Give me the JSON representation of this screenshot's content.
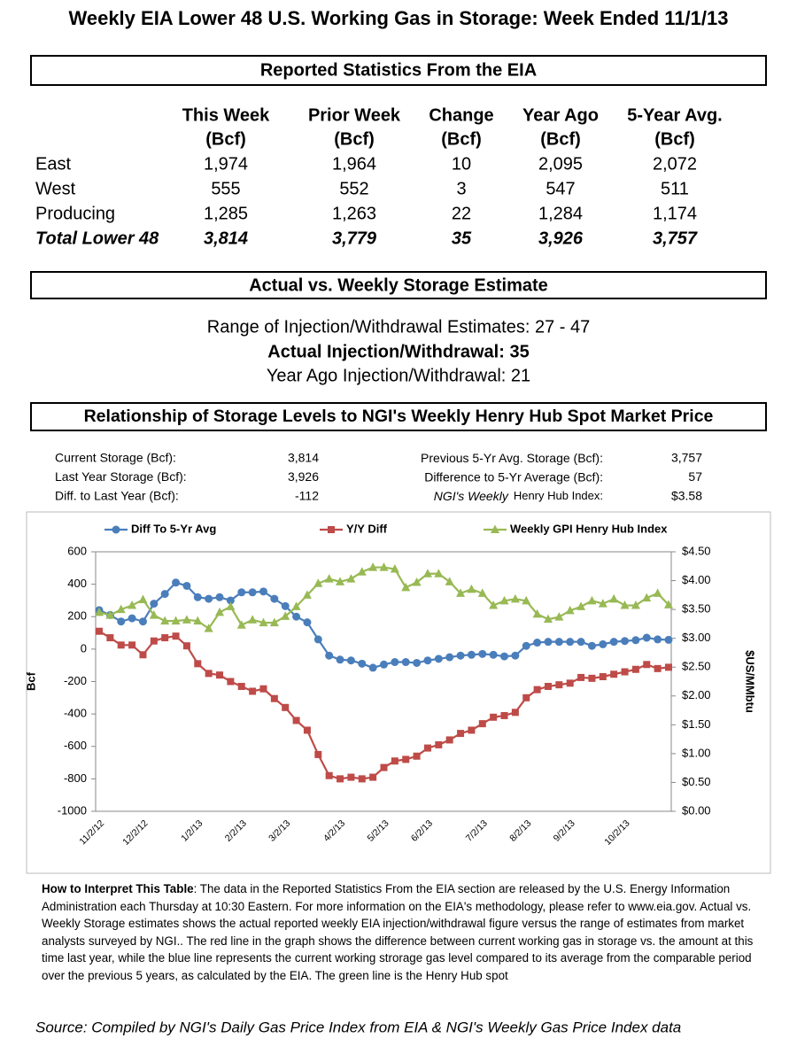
{
  "title": "Weekly EIA Lower 48 U.S. Working Gas in Storage: Week Ended 11/1/13",
  "stats": {
    "heading": "Reported Statistics From the EIA",
    "columns": [
      [
        "This Week",
        "(Bcf)"
      ],
      [
        "Prior Week",
        "(Bcf)"
      ],
      [
        "Change",
        "(Bcf)"
      ],
      [
        "Year Ago",
        "(Bcf)"
      ],
      [
        "5-Year Avg.",
        "(Bcf)"
      ]
    ],
    "rows": [
      [
        "East",
        "1,974",
        "1,964",
        "10",
        "2,095",
        "2,072"
      ],
      [
        "West",
        "555",
        "552",
        "3",
        "547",
        "511"
      ],
      [
        "Producing",
        "1,285",
        "1,263",
        "22",
        "1,284",
        "1,174"
      ],
      [
        "Total Lower 48",
        "3,814",
        "3,779",
        "35",
        "3,926",
        "3,757"
      ]
    ]
  },
  "estimate": {
    "heading": "Actual vs. Weekly Storage Estimate",
    "range": "Range of Injection/Withdrawal Estimates: 27 - 47",
    "actual": "Actual Injection/Withdrawal: 35",
    "year_ago": "Year Ago Injection/Withdrawal: 21"
  },
  "relationship": {
    "heading": "Relationship of Storage Levels to NGI's Weekly Henry Hub Spot Market Price",
    "left": [
      {
        "label": "Current Storage (Bcf):",
        "value": "3,814"
      },
      {
        "label": "Last Year Storage (Bcf):",
        "value": "3,926"
      },
      {
        "label": "Diff. to Last Year (Bcf):",
        "value": "-112"
      }
    ],
    "right": [
      {
        "label": "Previous 5-Yr Avg. Storage (Bcf):",
        "value": "3,757"
      },
      {
        "label": "Difference to 5-Yr Average (Bcf):",
        "value": "57"
      },
      {
        "label_italic": "NGI's Weekly",
        "label": "Henry Hub Index:",
        "value": "$3.58"
      }
    ]
  },
  "chart_data": {
    "type": "line",
    "categories": [
      "11/2/12",
      null,
      null,
      null,
      "12/2/12",
      null,
      null,
      null,
      null,
      "1/2/13",
      null,
      null,
      null,
      "2/2/13",
      null,
      null,
      null,
      "3/2/13",
      null,
      null,
      null,
      null,
      "4/2/13",
      null,
      null,
      null,
      "5/2/13",
      null,
      null,
      null,
      "6/2/13",
      null,
      null,
      null,
      null,
      "7/2/13",
      null,
      null,
      null,
      "8/2/13",
      null,
      null,
      null,
      "9/2/13",
      null,
      null,
      null,
      null,
      "10/2/13",
      null,
      null,
      null,
      null
    ],
    "ylabel": "Bcf",
    "y2label": "$US/MMbtu",
    "ylim": [
      -1000,
      600
    ],
    "yticks": [
      -1000,
      -800,
      -600,
      -400,
      -200,
      0,
      200,
      400,
      600
    ],
    "y2lim": [
      0,
      4.5
    ],
    "y2ticks": [
      {
        "value": 0,
        "label": "$0.00"
      },
      {
        "value": 0.5,
        "label": "$0.50"
      },
      {
        "value": 1,
        "label": "$1.00"
      },
      {
        "value": 1.5,
        "label": "$1.50"
      },
      {
        "value": 2,
        "label": "$2.00"
      },
      {
        "value": 2.5,
        "label": "$2.50"
      },
      {
        "value": 3,
        "label": "$3.00"
      },
      {
        "value": 3.5,
        "label": "$3.50"
      },
      {
        "value": 4,
        "label": "$4.00"
      },
      {
        "value": 4.5,
        "label": "$4.50"
      }
    ],
    "legend": "top",
    "series": [
      {
        "name": "Diff To 5-Yr Avg",
        "color": "#4a7ebb",
        "marker": "circle",
        "values": [
          240,
          210,
          170,
          190,
          170,
          280,
          340,
          410,
          390,
          320,
          310,
          320,
          300,
          350,
          350,
          355,
          310,
          265,
          200,
          165,
          60,
          -40,
          -65,
          -70,
          -90,
          -115,
          -95,
          -80,
          -80,
          -85,
          -70,
          -60,
          -50,
          -40,
          -35,
          -30,
          -35,
          -45,
          -40,
          20,
          40,
          45,
          45,
          45,
          45,
          20,
          30,
          45,
          50,
          55,
          70,
          60,
          57
        ]
      },
      {
        "name": "Y/Y Diff",
        "color": "#be4b48",
        "marker": "square",
        "values": [
          110,
          70,
          25,
          25,
          -35,
          50,
          70,
          80,
          20,
          -90,
          -150,
          -160,
          -200,
          -230,
          -260,
          -245,
          -305,
          -360,
          -440,
          -500,
          -650,
          -780,
          -800,
          -790,
          -800,
          -790,
          -730,
          -690,
          -680,
          -660,
          -610,
          -590,
          -560,
          -520,
          -500,
          -460,
          -420,
          -410,
          -390,
          -300,
          -250,
          -230,
          -220,
          -210,
          -175,
          -180,
          -170,
          -155,
          -140,
          -125,
          -95,
          -120,
          -112
        ]
      },
      {
        "name": "Weekly GPI Henry Hub Index",
        "color": "#98b954",
        "marker": "triangle",
        "axis": "y2",
        "values": [
          3.45,
          3.4,
          3.5,
          3.57,
          3.67,
          3.4,
          3.3,
          3.3,
          3.32,
          3.3,
          3.17,
          3.45,
          3.55,
          3.23,
          3.32,
          3.27,
          3.27,
          3.38,
          3.55,
          3.75,
          3.95,
          4.03,
          3.98,
          4.03,
          4.15,
          4.23,
          4.23,
          4.2,
          3.88,
          3.97,
          4.12,
          4.12,
          3.98,
          3.78,
          3.85,
          3.78,
          3.57,
          3.65,
          3.68,
          3.65,
          3.42,
          3.33,
          3.37,
          3.48,
          3.55,
          3.65,
          3.6,
          3.68,
          3.57,
          3.57,
          3.7,
          3.78,
          3.58
        ]
      }
    ]
  },
  "note": {
    "lead": "How to Interpret This Table",
    "text": ": The data in the Reported Statistics From the EIA section are released by the U.S. Energy Information Administration each Thursday at 10:30 Eastern. For more information on the EIA's methodology, please refer to www.eia.gov. Actual vs. Weekly Storage estimates shows the actual reported weekly EIA injection/withdrawal figure  versus the range of estimates from market analysts surveyed by NGI.. The red  line in the graph shows the difference between current working gas in storage vs. the amount at this time last year, while the blue line represents the current working strorage gas level  compared to its average from the comparable period over the previous 5 years, as calculated by the EIA. The green line is the Henry Hub spot"
  },
  "source": "Source: Compiled by NGI's Daily Gas Price Index from EIA & NGI's Weekly Gas Price Index data"
}
